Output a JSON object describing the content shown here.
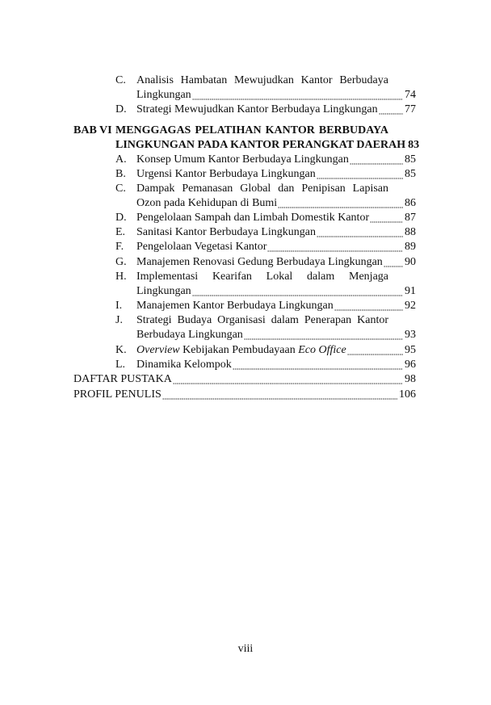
{
  "toc": {
    "prev_items": [
      {
        "letter": "C.",
        "line1": "Analisis Hambatan Mewujudkan Kantor Berbudaya",
        "line2": "Lingkungan",
        "page": "74"
      },
      {
        "letter": "D.",
        "title": "Strategi Mewujudkan Kantor Berbudaya Lingkungan",
        "page": "77"
      }
    ],
    "chapter": {
      "label": "BAB VI",
      "line1": "MENGGAGAS PELATIHAN KANTOR BERBUDAYA",
      "line2": "LINGKUNGAN PADA KANTOR PERANGKAT DAERAH",
      "page": "83"
    },
    "items": [
      {
        "letter": "A.",
        "title": "Konsep Umum Kantor Berbudaya Lingkungan",
        "page": "85"
      },
      {
        "letter": "B.",
        "title": "Urgensi Kantor Berbudaya Lingkungan",
        "page": "85"
      },
      {
        "letter": "C.",
        "line1": "Dampak Pemanasan Global dan Penipisan Lapisan",
        "line2": "Ozon pada Kehidupan di Bumi",
        "page": "86"
      },
      {
        "letter": "D.",
        "title": "Pengelolaan Sampah dan Limbah Domestik Kantor",
        "page": "87"
      },
      {
        "letter": "E.",
        "title": "Sanitasi Kantor Berbudaya Lingkungan",
        "page": "88"
      },
      {
        "letter": "F.",
        "title": "Pengelolaan Vegetasi Kantor",
        "page": "89"
      },
      {
        "letter": "G.",
        "title": "Manajemen Renovasi Gedung Berbudaya Lingkungan",
        "page": "90"
      },
      {
        "letter": "H.",
        "line1": "Implementasi Kearifan Lokal dalam Menjaga",
        "line2": "Lingkungan",
        "page": "91"
      },
      {
        "letter": "I.",
        "title": "Manajemen Kantor Berbudaya Lingkungan",
        "page": "92"
      },
      {
        "letter": "J.",
        "line1": "Strategi Budaya Organisasi dalam Penerapan Kantor",
        "line2": "Berbudaya Lingkungan",
        "page": "93"
      },
      {
        "letter": "K.",
        "italic1": "Overview",
        "mid": " Kebijakan Pembudayaan ",
        "italic2": "Eco Office",
        "page": "95"
      },
      {
        "letter": "L.",
        "title": "Dinamika Kelompok",
        "page": "96"
      }
    ],
    "back": [
      {
        "title": "DAFTAR PUSTAKA",
        "page": "98"
      },
      {
        "title": "PROFIL PENULIS",
        "page": "106"
      }
    ]
  },
  "folio": "viii"
}
